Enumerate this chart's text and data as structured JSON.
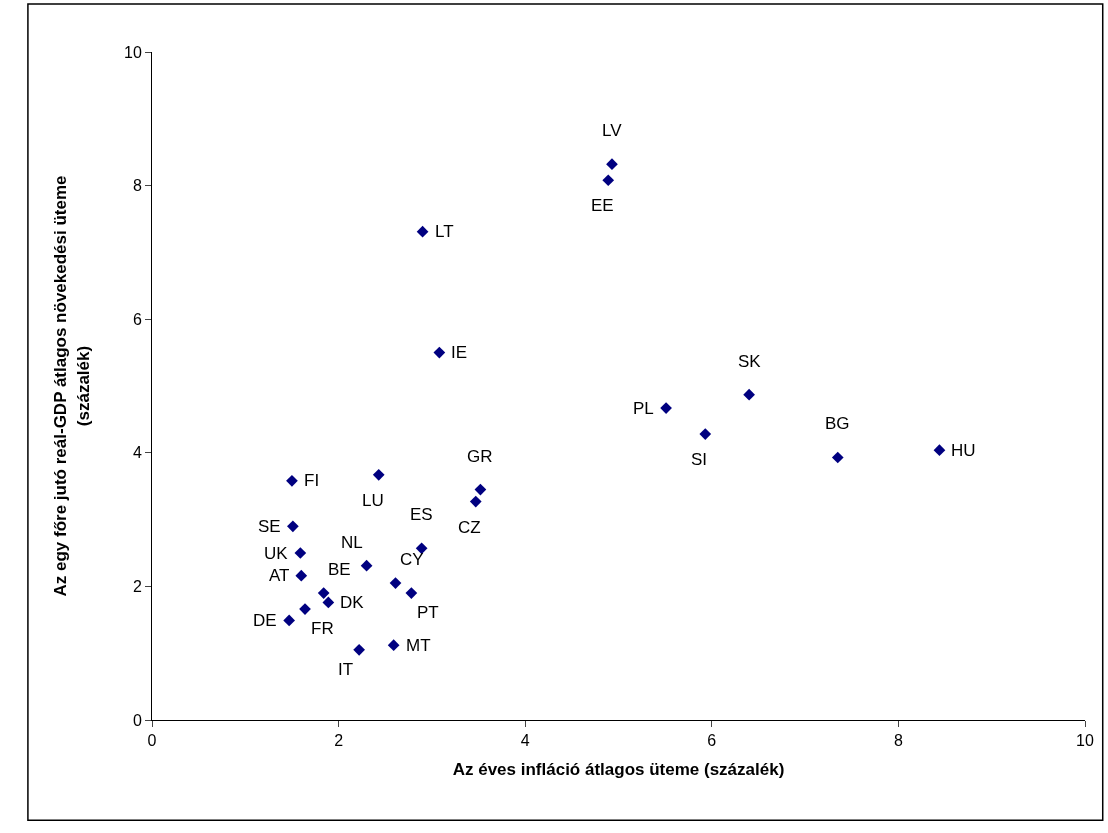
{
  "chart_data": {
    "type": "scatter",
    "xlabel": "Az éves infláció átlagos üteme (százalék)",
    "ylabel": "Az egy főre jutó reál-GDP átlagos növekedési üteme\n(százalék)",
    "x": [
      4.93,
      4.89,
      2.9,
      3.08,
      5.51,
      6.4,
      5.93,
      7.35,
      8.44,
      1.5,
      2.43,
      3.52,
      3.47,
      1.51,
      1.59,
      1.6,
      2.89,
      2.3,
      1.84,
      1.89,
      2.61,
      2.78,
      1.64,
      1.47,
      2.22,
      2.59
    ],
    "values": [
      8.32,
      8.08,
      7.31,
      5.5,
      4.67,
      4.87,
      4.28,
      3.93,
      4.04,
      3.58,
      3.67,
      3.45,
      3.27,
      2.9,
      2.5,
      2.16,
      2.57,
      2.31,
      1.9,
      1.76,
      2.05,
      1.9,
      1.66,
      1.49,
      1.05,
      1.12
    ],
    "color": "#000080",
    "marker": "diamond",
    "xlim": [
      0,
      10
    ],
    "xticks": [
      0,
      2,
      4,
      6,
      8,
      10
    ],
    "ylim": [
      0,
      10
    ],
    "yticks": [
      0,
      2,
      4,
      6,
      8,
      10
    ],
    "grid": false,
    "legend": false,
    "annotations": [
      {
        "text": "LV",
        "x": 4.93,
        "y": 8.32
      },
      {
        "text": "EE",
        "x": 4.89,
        "y": 8.08
      },
      {
        "text": "LT",
        "x": 2.9,
        "y": 7.31
      },
      {
        "text": "IE",
        "x": 3.08,
        "y": 5.5
      },
      {
        "text": "PL",
        "x": 5.51,
        "y": 4.67
      },
      {
        "text": "SK",
        "x": 6.4,
        "y": 4.87
      },
      {
        "text": "SI",
        "x": 5.93,
        "y": 4.28
      },
      {
        "text": "BG",
        "x": 7.35,
        "y": 3.93
      },
      {
        "text": "HU",
        "x": 8.44,
        "y": 4.04
      },
      {
        "text": "FI",
        "x": 1.5,
        "y": 3.58
      },
      {
        "text": "LU",
        "x": 2.43,
        "y": 3.67
      },
      {
        "text": "GR",
        "x": 3.52,
        "y": 3.45
      },
      {
        "text": "CZ",
        "x": 3.47,
        "y": 3.27
      },
      {
        "text": "SE",
        "x": 1.51,
        "y": 2.9
      },
      {
        "text": "UK",
        "x": 1.59,
        "y": 2.5
      },
      {
        "text": "AT",
        "x": 1.6,
        "y": 2.16
      },
      {
        "text": "ES",
        "x": 2.89,
        "y": 2.57
      },
      {
        "text": "NL",
        "x": 2.3,
        "y": 2.31
      },
      {
        "text": "BE",
        "x": 1.84,
        "y": 1.9
      },
      {
        "text": "DK",
        "x": 1.89,
        "y": 1.76
      },
      {
        "text": "CY",
        "x": 2.61,
        "y": 2.05
      },
      {
        "text": "PT",
        "x": 2.78,
        "y": 1.9
      },
      {
        "text": "FR",
        "x": 1.64,
        "y": 1.66
      },
      {
        "text": "DE",
        "x": 1.47,
        "y": 1.49
      },
      {
        "text": "IT",
        "x": 2.22,
        "y": 1.05
      },
      {
        "text": "MT",
        "x": 2.59,
        "y": 1.12
      }
    ]
  }
}
